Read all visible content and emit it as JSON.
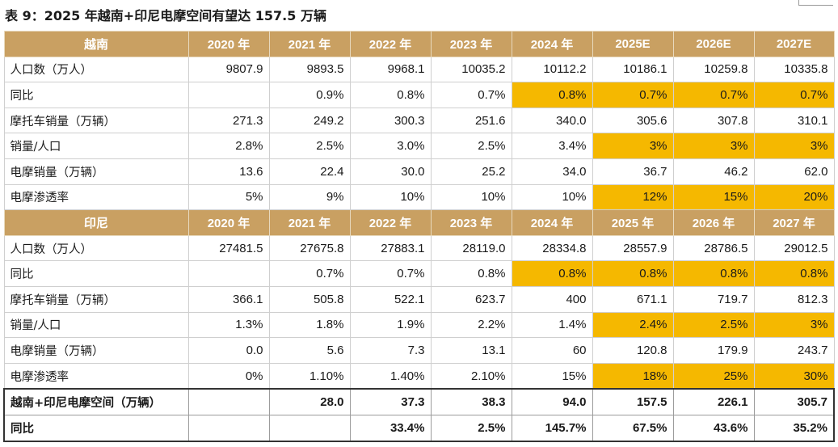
{
  "title": "表 9：2025 年越南+印尼电摩空间有望达 157.5 万辆",
  "colors": {
    "header_bg": "#c9a062",
    "highlight": "#f5b800"
  },
  "vietnam": {
    "header": [
      "越南",
      "2020 年",
      "2021 年",
      "2022 年",
      "2023 年",
      "2024 年",
      "2025E",
      "2026E",
      "2027E"
    ],
    "rows": [
      {
        "label": "人口数（万人）",
        "values": [
          "9807.9",
          "9893.5",
          "9968.1",
          "10035.2",
          "10112.2",
          "10186.1",
          "10259.8",
          "10335.8"
        ],
        "hl": []
      },
      {
        "label": "同比",
        "values": [
          "",
          "0.9%",
          "0.8%",
          "0.7%",
          "0.8%",
          "0.7%",
          "0.7%",
          "0.7%"
        ],
        "hl": [
          4,
          5,
          6,
          7
        ]
      },
      {
        "label": "摩托车销量（万辆）",
        "values": [
          "271.3",
          "249.2",
          "300.3",
          "251.6",
          "340.0",
          "305.6",
          "307.8",
          "310.1"
        ],
        "hl": []
      },
      {
        "label": "销量/人口",
        "values": [
          "2.8%",
          "2.5%",
          "3.0%",
          "2.5%",
          "3.4%",
          "3%",
          "3%",
          "3%"
        ],
        "hl": [
          5,
          6,
          7
        ]
      },
      {
        "label": "电摩销量（万辆）",
        "values": [
          "13.6",
          "22.4",
          "30.0",
          "25.2",
          "34.0",
          "36.7",
          "46.2",
          "62.0"
        ],
        "hl": []
      },
      {
        "label": "电摩渗透率",
        "values": [
          "5%",
          "9%",
          "10%",
          "10%",
          "10%",
          "12%",
          "15%",
          "20%"
        ],
        "hl": [
          5,
          6,
          7
        ]
      }
    ]
  },
  "indonesia": {
    "header": [
      "印尼",
      "2020 年",
      "2021 年",
      "2022 年",
      "2023 年",
      "2024 年",
      "2025 年",
      "2026 年",
      "2027 年"
    ],
    "rows": [
      {
        "label": "人口数（万人）",
        "values": [
          "27481.5",
          "27675.8",
          "27883.1",
          "28119.0",
          "28334.8",
          "28557.9",
          "28786.5",
          "29012.5"
        ],
        "hl": []
      },
      {
        "label": "同比",
        "values": [
          "",
          "0.7%",
          "0.7%",
          "0.8%",
          "0.8%",
          "0.8%",
          "0.8%",
          "0.8%"
        ],
        "hl": [
          4,
          5,
          6,
          7
        ]
      },
      {
        "label": "摩托车销量（万辆）",
        "values": [
          "366.1",
          "505.8",
          "522.1",
          "623.7",
          "400",
          "671.1",
          "719.7",
          "812.3"
        ],
        "hl": []
      },
      {
        "label": "销量/人口",
        "values": [
          "1.3%",
          "1.8%",
          "1.9%",
          "2.2%",
          "1.4%",
          "2.4%",
          "2.5%",
          "3%"
        ],
        "hl": [
          5,
          6,
          7
        ]
      },
      {
        "label": "电摩销量（万辆）",
        "values": [
          "0.0",
          "5.6",
          "7.3",
          "13.1",
          "60",
          "120.8",
          "179.9",
          "243.7"
        ],
        "hl": []
      },
      {
        "label": "电摩渗透率",
        "values": [
          "0%",
          "1.10%",
          "1.40%",
          "2.10%",
          "15%",
          "18%",
          "25%",
          "30%"
        ],
        "hl": [
          5,
          6,
          7
        ]
      }
    ]
  },
  "totals": [
    {
      "label": "越南+印尼电摩空间（万辆）",
      "values": [
        "",
        "28.0",
        "37.3",
        "38.3",
        "94.0",
        "157.5",
        "226.1",
        "305.7"
      ]
    },
    {
      "label": "同比",
      "values": [
        "",
        "",
        "33.4%",
        "2.5%",
        "145.7%",
        "67.5%",
        "43.6%",
        "35.2%"
      ]
    }
  ]
}
